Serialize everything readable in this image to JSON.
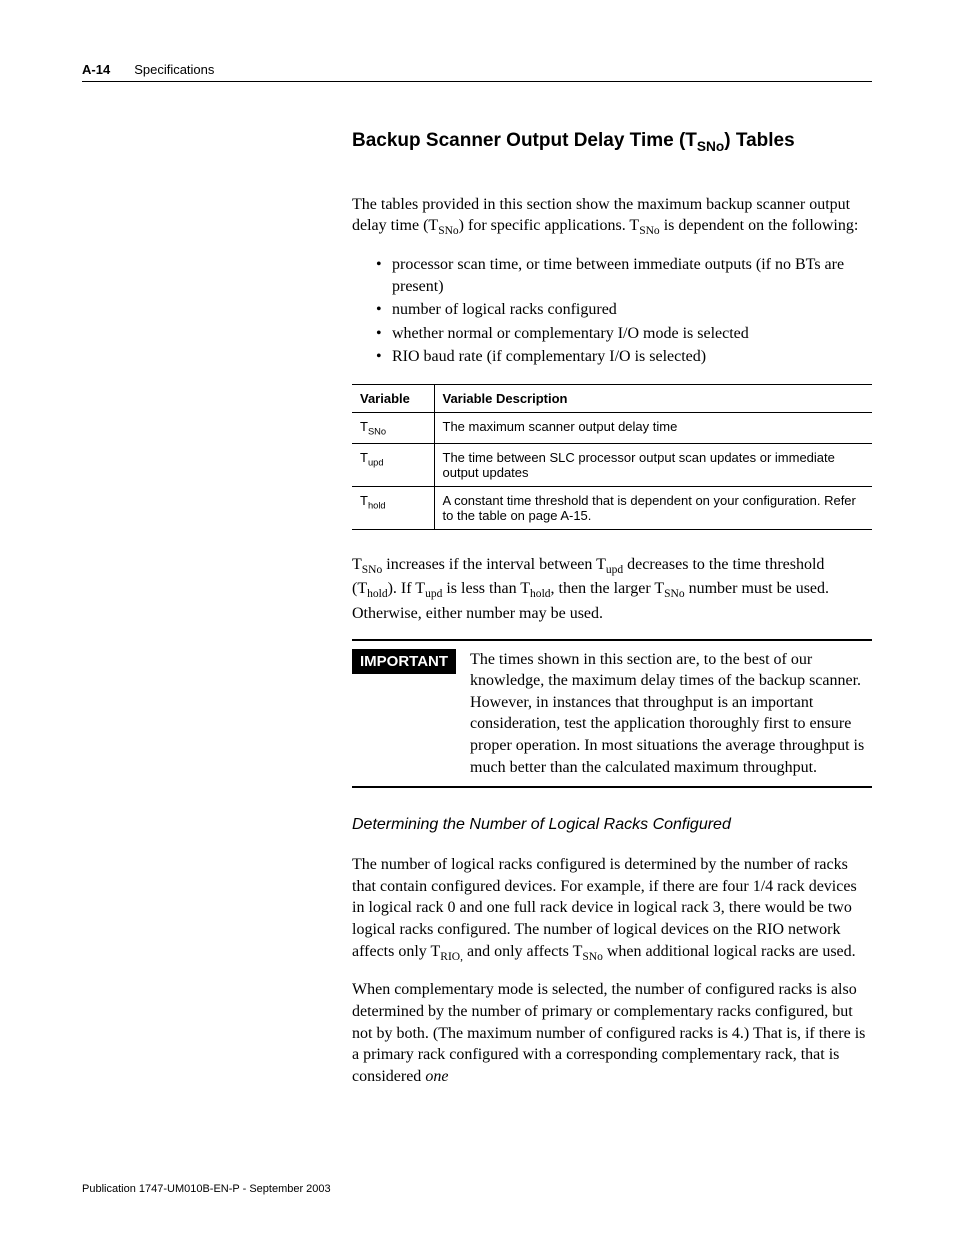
{
  "header": {
    "page_num": "A-14",
    "chapter": "Specifications"
  },
  "section_title": {
    "pre": "Backup Scanner Output Delay Time (T",
    "sub": "SNo",
    "post": ") Tables"
  },
  "intro": {
    "pre": "The tables provided in this section show the maximum backup scanner output delay time (T",
    "sub1": "SNo",
    "mid": ") for specific applications.  T",
    "sub2": "SNo",
    "post": " is dependent on the following:"
  },
  "bullets": [
    "processor scan time, or time between immediate outputs (if no BTs are present)",
    "number of logical racks configured",
    "whether normal or complementary I/O mode is selected",
    "RIO baud rate (if complementary I/O is selected)"
  ],
  "table": {
    "headers": [
      "Variable",
      "Variable Description"
    ],
    "rows": [
      {
        "var_pre": "T",
        "var_sub": "SNo",
        "desc": "The maximum scanner output delay time"
      },
      {
        "var_pre": "T",
        "var_sub": "upd",
        "desc": "The time between SLC processor output scan updates or immediate output updates"
      },
      {
        "var_pre": "T",
        "var_sub": "hold",
        "desc": "A constant time threshold that is dependent on your configuration.  Refer to the table on page A-15."
      }
    ]
  },
  "para2": {
    "p1": "T",
    "s1": "SNo",
    "p2": " increases if the interval between T",
    "s2": "upd",
    "p3": " decreases to the time threshold (T",
    "s3": "hold",
    "p4": ").  If T",
    "s4": "upd",
    "p5": " is less than T",
    "s5": "hold",
    "p6": ", then the larger T",
    "s6": "SNo",
    "p7": " number must be used.  Otherwise, either number may be used."
  },
  "important": {
    "label": "IMPORTANT",
    "text": "The times shown in this section are, to the best of our knowledge, the maximum delay times of the backup scanner.  However, in instances that throughput is an important consideration, test the application thoroughly first to ensure proper operation.  In most situations the average throughput is much better than the calculated maximum throughput."
  },
  "subhead": "Determining the Number of Logical Racks Configured",
  "para3": {
    "p1": "The number of logical racks configured is determined by the number of racks that contain configured devices.  For example, if there are four 1/4 rack devices in logical rack 0 and one full rack device in logical rack 3, there would be two logical racks configured.  The number of logical devices on the RIO network affects only T",
    "s1": "RIO,",
    "p2": " and only affects T",
    "s2": "SNo",
    "p3": " when additional logical racks are used."
  },
  "para4": {
    "p1": "When complementary mode is selected, the number of configured racks is also determined by the number of primary or complementary racks configured, but not by both. (The maximum number of configured racks is 4.) That is, if there is a primary rack configured with a corresponding complementary rack, that is considered ",
    "em": "one"
  },
  "footer": "Publication 1747-UM010B-EN-P - September 2003"
}
